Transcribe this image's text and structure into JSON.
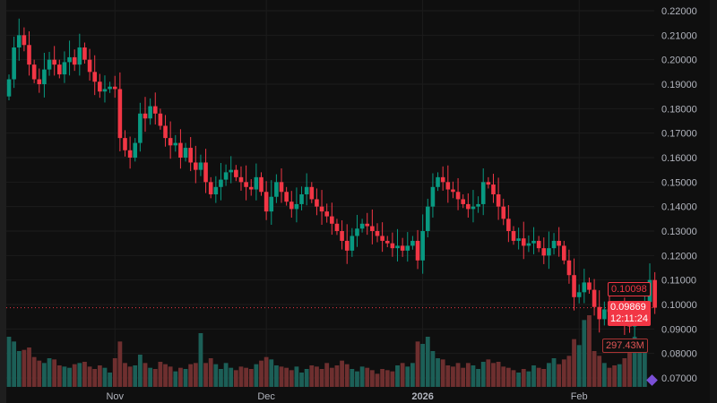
{
  "chart_data": {
    "type": "candlestick",
    "title": "",
    "ylim": [
      0.07,
      0.22
    ],
    "y_ticks": [
      "0.22000",
      "0.21000",
      "0.20000",
      "0.19000",
      "0.18000",
      "0.17000",
      "0.16000",
      "0.15000",
      "0.14000",
      "0.13000",
      "0.12000",
      "0.11000",
      "0.10000",
      "0.09000",
      "0.08000",
      "0.07000"
    ],
    "x_ticks": [
      {
        "label": "Nov",
        "day": 21
      },
      {
        "label": "Dec",
        "day": 51
      },
      {
        "label": "2026",
        "day": 82
      },
      {
        "label": "Feb",
        "day": 113
      }
    ],
    "closes": [
      0.192,
      0.205,
      0.21,
      0.206,
      0.198,
      0.192,
      0.19,
      0.196,
      0.2,
      0.198,
      0.194,
      0.199,
      0.201,
      0.198,
      0.205,
      0.2,
      0.195,
      0.191,
      0.187,
      0.188,
      0.189,
      0.188,
      0.168,
      0.163,
      0.16,
      0.166,
      0.178,
      0.176,
      0.181,
      0.178,
      0.173,
      0.168,
      0.165,
      0.166,
      0.16,
      0.164,
      0.158,
      0.155,
      0.158,
      0.15,
      0.145,
      0.148,
      0.151,
      0.154,
      0.155,
      0.152,
      0.15,
      0.148,
      0.147,
      0.152,
      0.146,
      0.138,
      0.144,
      0.15,
      0.146,
      0.142,
      0.139,
      0.141,
      0.145,
      0.148,
      0.143,
      0.14,
      0.138,
      0.136,
      0.133,
      0.13,
      0.126,
      0.122,
      0.128,
      0.131,
      0.133,
      0.132,
      0.13,
      0.128,
      0.126,
      0.125,
      0.123,
      0.124,
      0.122,
      0.124,
      0.126,
      0.118,
      0.13,
      0.14,
      0.148,
      0.152,
      0.15,
      0.147,
      0.146,
      0.143,
      0.141,
      0.139,
      0.14,
      0.141,
      0.15,
      0.149,
      0.145,
      0.14,
      0.135,
      0.13,
      0.126,
      0.127,
      0.124,
      0.125,
      0.126,
      0.123,
      0.12,
      0.123,
      0.126,
      0.124,
      0.118,
      0.112,
      0.103,
      0.105,
      0.109,
      0.106,
      0.099,
      0.094,
      0.098,
      0.097,
      0.095,
      0.096,
      0.093,
      0.091,
      0.095,
      0.097,
      0.101,
      0.11,
      0.09869
    ],
    "first_open": 0.185,
    "volumes_m": [
      420,
      380,
      300,
      310,
      330,
      250,
      220,
      200,
      240,
      230,
      180,
      170,
      160,
      190,
      200,
      210,
      170,
      150,
      180,
      160,
      120,
      240,
      380,
      200,
      170,
      180,
      270,
      200,
      160,
      150,
      210,
      190,
      170,
      130,
      160,
      150,
      190,
      200,
      450,
      200,
      240,
      190,
      150,
      200,
      160,
      140,
      170,
      160,
      150,
      190,
      220,
      250,
      230,
      180,
      170,
      160,
      140,
      170,
      120,
      150,
      180,
      170,
      150,
      200,
      160,
      180,
      220,
      190,
      150,
      130,
      170,
      160,
      140,
      110,
      150,
      140,
      130,
      180,
      200,
      170,
      200,
      380,
      360,
      420,
      300,
      240,
      230,
      180,
      170,
      200,
      160,
      200,
      180,
      150,
      210,
      230,
      200,
      210,
      170,
      160,
      140,
      120,
      150,
      130,
      180,
      160,
      150,
      200,
      240,
      190,
      230,
      260,
      400,
      350,
      560,
      600,
      300,
      260,
      200,
      160,
      180,
      190,
      240,
      360,
      420,
      400,
      297.43
    ],
    "last_price": "0.09869",
    "countdown": "12:11:24",
    "prev_price_label": "0.10098",
    "volume_label": "297.43M",
    "colors": {
      "up": "#089981",
      "down": "#f23645",
      "vol_up": "#1c5f57",
      "vol_down": "#6e2f2f",
      "bg": "#0f0f0f",
      "grid": "#1c1c1c",
      "axis_text": "#b2b5be"
    }
  }
}
